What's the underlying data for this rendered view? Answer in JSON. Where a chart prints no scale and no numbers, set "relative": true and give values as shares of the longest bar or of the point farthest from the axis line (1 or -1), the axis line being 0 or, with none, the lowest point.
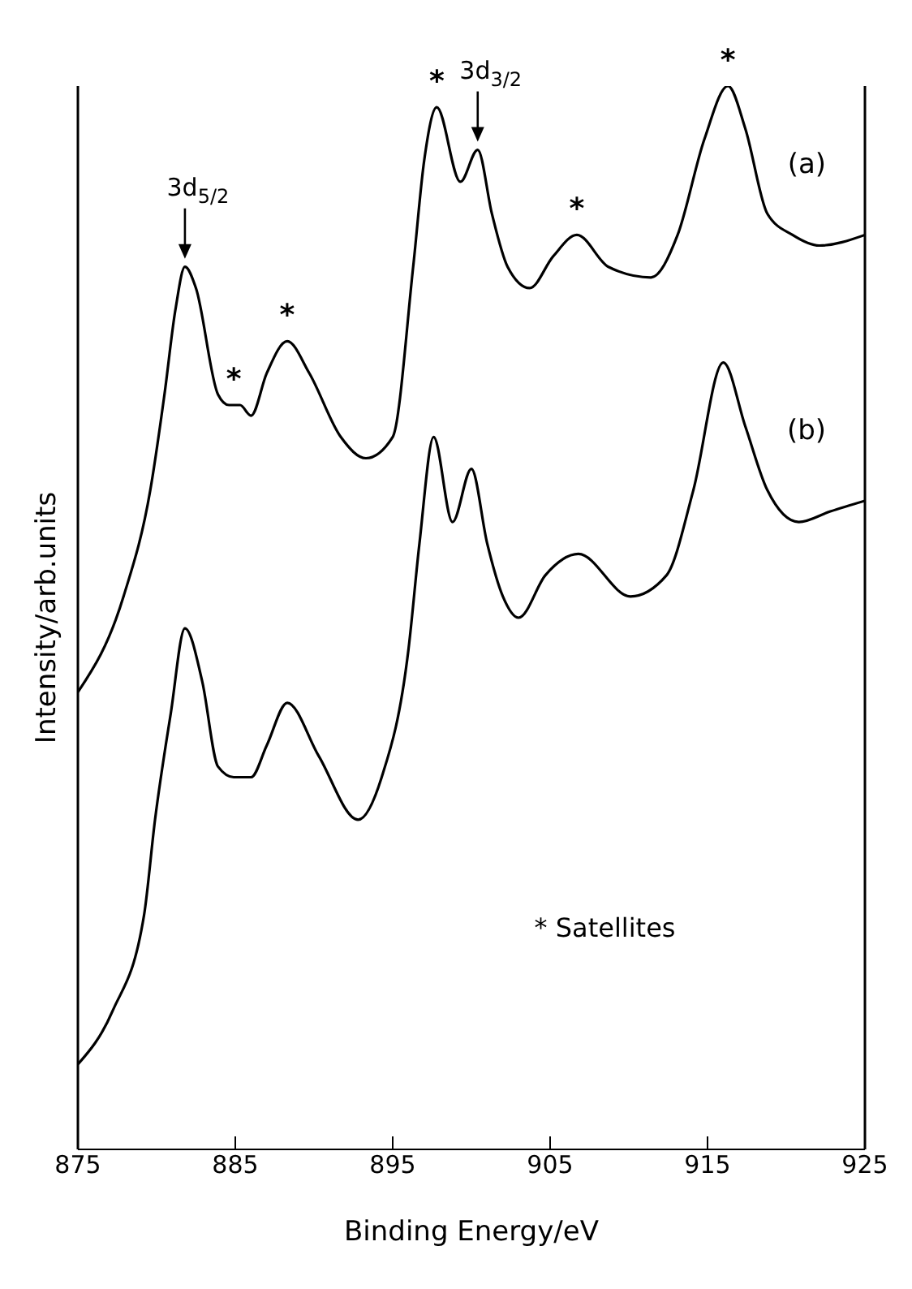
{
  "chart_data": {
    "type": "line",
    "relative": true,
    "xlabel": "Binding Energy/eV",
    "ylabel": "Intensity/arb.units",
    "xlim": [
      875,
      925
    ],
    "xticks": [
      875,
      885,
      895,
      905,
      915,
      925
    ],
    "marker": "none",
    "series": [
      {
        "name": "(a)",
        "color": "#000000",
        "x": [
          875,
          877.9,
          879.6,
          880.5,
          881.2,
          881.8,
          882.5,
          883.9,
          884.6,
          885.3,
          886.0,
          887.0,
          888.3,
          889.7,
          891.7,
          893.3,
          895.0,
          896.3,
          897.0,
          897.8,
          899.3,
          900.4,
          901.3,
          902.3,
          903.7,
          905.2,
          906.7,
          908.7,
          911.4,
          913.1,
          914.8,
          916.3,
          917.4,
          918.8,
          920.4,
          922.1,
          925
        ],
        "values": [
          0.43,
          0.52,
          0.62,
          0.71,
          0.79,
          0.83,
          0.81,
          0.71,
          0.7,
          0.7,
          0.69,
          0.73,
          0.76,
          0.73,
          0.67,
          0.65,
          0.67,
          0.83,
          0.93,
          0.98,
          0.91,
          0.94,
          0.88,
          0.83,
          0.81,
          0.84,
          0.86,
          0.83,
          0.82,
          0.86,
          0.95,
          1.0,
          0.96,
          0.88,
          0.86,
          0.85,
          0.86
        ]
      },
      {
        "name": "(b)",
        "color": "#000000",
        "x": [
          875,
          877.2,
          879.2,
          879.9,
          880.9,
          881.8,
          882.9,
          883.9,
          884.9,
          886.0,
          887.0,
          888.3,
          890.3,
          892.8,
          894.3,
          896.0,
          896.7,
          897.6,
          898.8,
          900.0,
          901.0,
          902.0,
          903.0,
          904.7,
          906.8,
          910.1,
          912.4,
          914.1,
          916.0,
          917.4,
          918.8,
          920.8,
          922.8,
          925
        ],
        "values": [
          0.08,
          0.13,
          0.22,
          0.31,
          0.41,
          0.49,
          0.44,
          0.36,
          0.35,
          0.35,
          0.38,
          0.42,
          0.37,
          0.31,
          0.35,
          0.47,
          0.57,
          0.67,
          0.59,
          0.64,
          0.57,
          0.52,
          0.5,
          0.54,
          0.56,
          0.52,
          0.54,
          0.62,
          0.74,
          0.68,
          0.62,
          0.59,
          0.6,
          0.61
        ]
      }
    ],
    "annotations": [
      {
        "text": "3d$_{5/2}$",
        "x": 881.8,
        "y": 0.83
      },
      {
        "text": "3d$_{3/2}$",
        "x": 900.4,
        "y": 0.94
      },
      {
        "text": "*",
        "x": 884.9,
        "y": 0.7
      },
      {
        "text": "*",
        "x": 888.3,
        "y": 0.76
      },
      {
        "text": "*",
        "x": 897.8,
        "y": 0.98
      },
      {
        "text": "*",
        "x": 906.7,
        "y": 0.86
      },
      {
        "text": "*",
        "x": 916.3,
        "y": 1.0
      },
      "* Satellites"
    ]
  }
}
